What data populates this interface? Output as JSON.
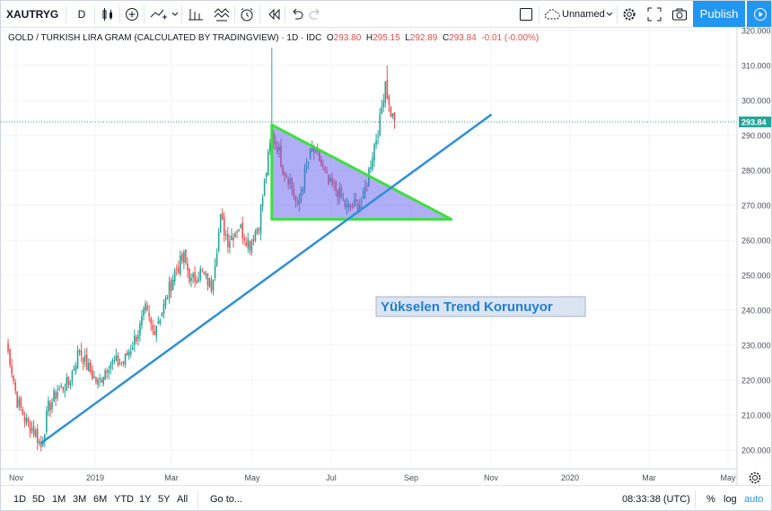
{
  "toolbar": {
    "symbol": "XAUTRYG",
    "interval": "D",
    "layout_name": "Unnamed",
    "publish_label": "Publish"
  },
  "legend": {
    "title": "GOLD / TURKISH LIRA GRAM (CALCULATED BY TRADINGVIEW) · 1D · IDC",
    "o_label": "O",
    "o_value": "293.80",
    "h_label": "H",
    "h_value": "295.15",
    "l_label": "L",
    "l_value": "292.89",
    "c_label": "C",
    "c_value": "293.84",
    "change": "-0.01 (-0.00%)"
  },
  "chart_data": {
    "type": "candlestick",
    "title": "GOLD / TURKISH LIRA GRAM (CALCULATED BY TRADINGVIEW) · 1D · IDC",
    "x_ticks": [
      "Nov",
      "2019",
      "Mar",
      "May",
      "Jul",
      "Sep",
      "Nov",
      "2020",
      "Mar",
      "May"
    ],
    "y_ticks": [
      200,
      210,
      220,
      230,
      240,
      250,
      260,
      270,
      280,
      290,
      300,
      310,
      320
    ],
    "ylim": [
      195,
      322
    ],
    "last_price": 293.84,
    "last_price_label": "293.84",
    "up_color": "#26a69a",
    "down_color": "#ef5350",
    "anchors": [
      {
        "x": 0,
        "y": 230
      },
      {
        "x": 2,
        "y": 226
      },
      {
        "x": 6,
        "y": 214
      },
      {
        "x": 11,
        "y": 208
      },
      {
        "x": 16,
        "y": 205
      },
      {
        "x": 19,
        "y": 201
      },
      {
        "x": 23,
        "y": 212
      },
      {
        "x": 28,
        "y": 217
      },
      {
        "x": 34,
        "y": 219
      },
      {
        "x": 40,
        "y": 229
      },
      {
        "x": 44,
        "y": 224
      },
      {
        "x": 50,
        "y": 219
      },
      {
        "x": 56,
        "y": 225
      },
      {
        "x": 64,
        "y": 225
      },
      {
        "x": 73,
        "y": 235
      },
      {
        "x": 76,
        "y": 240
      },
      {
        "x": 80,
        "y": 234
      },
      {
        "x": 86,
        "y": 241
      },
      {
        "x": 92,
        "y": 251
      },
      {
        "x": 97,
        "y": 255
      },
      {
        "x": 101,
        "y": 248
      },
      {
        "x": 106,
        "y": 251
      },
      {
        "x": 112,
        "y": 247
      },
      {
        "x": 117,
        "y": 266
      },
      {
        "x": 121,
        "y": 260
      },
      {
        "x": 127,
        "y": 264
      },
      {
        "x": 133,
        "y": 259
      },
      {
        "x": 138,
        "y": 265
      },
      {
        "x": 142,
        "y": 280
      },
      {
        "x": 145,
        "y": 290
      },
      {
        "x": 148,
        "y": 287
      },
      {
        "x": 151,
        "y": 281
      },
      {
        "x": 155,
        "y": 277
      },
      {
        "x": 159,
        "y": 269
      },
      {
        "x": 163,
        "y": 279
      },
      {
        "x": 167,
        "y": 286
      },
      {
        "x": 171,
        "y": 283
      },
      {
        "x": 176,
        "y": 276
      },
      {
        "x": 181,
        "y": 274
      },
      {
        "x": 186,
        "y": 269
      },
      {
        "x": 191,
        "y": 270
      },
      {
        "x": 195,
        "y": 272
      },
      {
        "x": 200,
        "y": 285
      },
      {
        "x": 204,
        "y": 294
      },
      {
        "x": 207,
        "y": 306
      },
      {
        "x": 209,
        "y": 298
      },
      {
        "x": 212,
        "y": 293.84
      }
    ],
    "spikes": [
      {
        "x": 145,
        "high": 315
      },
      {
        "x": 208,
        "high": 310
      }
    ],
    "annotation": "Yükselen Trend Korunuyor",
    "trendline": {
      "from": {
        "x": 19,
        "y": 202
      },
      "to": {
        "x": 265,
        "y": 296
      }
    },
    "triangle": {
      "points": [
        {
          "x": 145,
          "y": 293
        },
        {
          "x": 145,
          "y": 266
        },
        {
          "x": 243,
          "y": 266
        }
      ]
    }
  },
  "bottom": {
    "ranges": [
      "1D",
      "5D",
      "1M",
      "3M",
      "6M",
      "YTD",
      "1Y",
      "5Y",
      "All"
    ],
    "goto_label": "Go to...",
    "time": "08:33:38 (UTC)",
    "percent_label": "%",
    "log_label": "log",
    "auto_label": "auto"
  }
}
